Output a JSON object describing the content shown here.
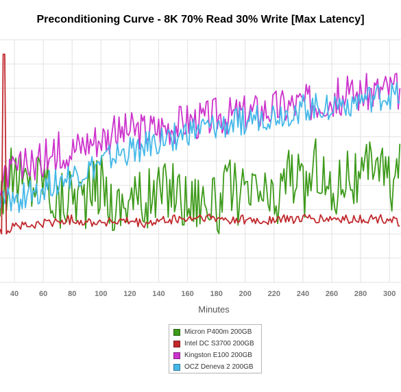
{
  "chart_data": {
    "type": "line",
    "title": "Preconditioning Curve - 8K 70% Read 30% Write [Max Latency]",
    "xlabel": "Minutes",
    "ylabel": "",
    "xlim": [
      30,
      308
    ],
    "ylim": [
      0,
      100
    ],
    "xticks": [
      40,
      60,
      80,
      100,
      120,
      140,
      160,
      180,
      200,
      220,
      240,
      260,
      280,
      300
    ],
    "grid": true,
    "legend_position": "bottom-center",
    "series": [
      {
        "name": "Micron P400m 200GB",
        "color": "#3d9a1a",
        "x": [
          30,
          40,
          50,
          60,
          70,
          80,
          90,
          100,
          110,
          120,
          130,
          140,
          150,
          160,
          170,
          180,
          190,
          200,
          210,
          220,
          230,
          240,
          250,
          260,
          270,
          280,
          290,
          300,
          308
        ],
        "y": [
          38,
          44,
          40,
          46,
          32,
          38,
          35,
          42,
          30,
          36,
          33,
          37,
          40,
          33,
          36,
          30,
          40,
          33,
          38,
          30,
          47,
          37,
          50,
          34,
          48,
          38,
          54,
          40,
          46
        ]
      },
      {
        "name": "Intel DC S3700 200GB",
        "color": "#c1282d",
        "x": [
          30,
          40,
          50,
          60,
          70,
          80,
          90,
          100,
          110,
          120,
          130,
          140,
          150,
          160,
          170,
          180,
          190,
          200,
          210,
          220,
          230,
          240,
          250,
          260,
          270,
          280,
          290,
          300,
          308
        ],
        "y": [
          19,
          24,
          23,
          24,
          25,
          26,
          25,
          25,
          25,
          25,
          24,
          25,
          26,
          26,
          27,
          26,
          26,
          26,
          25,
          26,
          26,
          26,
          26,
          26,
          26,
          26,
          26,
          26,
          25
        ]
      },
      {
        "name": "Kingston E100 200GB",
        "color": "#cc33cc",
        "x": [
          30,
          40,
          50,
          60,
          70,
          80,
          90,
          100,
          110,
          120,
          130,
          140,
          150,
          160,
          170,
          180,
          190,
          200,
          210,
          220,
          230,
          240,
          250,
          260,
          270,
          280,
          290,
          300,
          308
        ],
        "y": [
          40,
          46,
          48,
          51,
          54,
          55,
          58,
          60,
          61,
          63,
          63,
          64,
          65,
          67,
          67,
          69,
          69,
          70,
          71,
          72,
          73,
          74,
          75,
          76,
          77,
          78,
          79,
          80,
          79
        ]
      },
      {
        "name": "OCZ Deneva 2 200GB",
        "color": "#44b8e8",
        "x": [
          30,
          40,
          50,
          60,
          70,
          80,
          90,
          100,
          110,
          120,
          130,
          140,
          150,
          160,
          170,
          180,
          190,
          200,
          210,
          220,
          230,
          240,
          250,
          260,
          270,
          280,
          290,
          300,
          308
        ],
        "y": [
          33,
          34,
          36,
          39,
          42,
          44,
          46,
          49,
          52,
          54,
          56,
          58,
          60,
          62,
          63,
          64,
          65,
          67,
          68,
          69,
          70,
          72,
          72,
          73,
          74,
          75,
          76,
          77,
          76
        ]
      }
    ]
  }
}
